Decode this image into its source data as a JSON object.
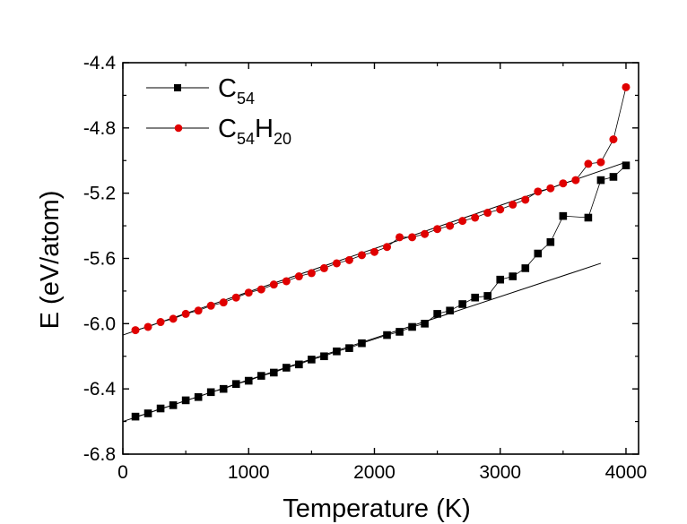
{
  "chart_data": {
    "type": "scatter",
    "title": "",
    "xlabel": "Temperature (K)",
    "ylabel": "E (eV/atom)",
    "xlim": [
      0,
      4100
    ],
    "ylim": [
      -6.8,
      -4.4
    ],
    "xticks": [
      0,
      1000,
      2000,
      3000,
      4000
    ],
    "xtick_labels": [
      "0",
      "1000",
      "2000",
      "3000",
      "4000"
    ],
    "yticks": [
      -6.8,
      -6.4,
      -6.0,
      -5.6,
      -5.2,
      -4.8,
      -4.4
    ],
    "ytick_labels": [
      "-6.8",
      "-6.4",
      "-6.0",
      "-5.6",
      "-5.2",
      "-4.8",
      "-4.4"
    ],
    "legend_position": "top-left",
    "series": [
      {
        "name": "C54",
        "legend_main": "C",
        "legend_sub": "54",
        "marker": "square",
        "color": "#000000",
        "x": [
          100,
          200,
          300,
          400,
          500,
          600,
          700,
          800,
          900,
          1000,
          1100,
          1200,
          1300,
          1400,
          1500,
          1600,
          1700,
          1800,
          1900,
          2100,
          2200,
          2300,
          2400,
          2500,
          2600,
          2700,
          2800,
          2900,
          3000,
          3100,
          3200,
          3300,
          3400,
          3500,
          3700,
          3800,
          3900,
          4000
        ],
        "y": [
          -6.57,
          -6.55,
          -6.52,
          -6.5,
          -6.47,
          -6.45,
          -6.42,
          -6.4,
          -6.37,
          -6.35,
          -6.32,
          -6.3,
          -6.27,
          -6.25,
          -6.22,
          -6.2,
          -6.17,
          -6.15,
          -6.12,
          -6.07,
          -6.05,
          -6.02,
          -6.0,
          -5.94,
          -5.92,
          -5.88,
          -5.84,
          -5.83,
          -5.73,
          -5.71,
          -5.66,
          -5.57,
          -5.5,
          -5.34,
          -5.35,
          -5.12,
          -5.1,
          -5.03
        ],
        "fit": {
          "x": [
            0,
            3800
          ],
          "y": [
            -6.6,
            -5.63
          ]
        }
      },
      {
        "name": "C54H20",
        "legend_main": "C",
        "legend_sub": "54",
        "legend_main2": "H",
        "legend_sub2": "20",
        "marker": "circle",
        "color": "#e00000",
        "x": [
          100,
          200,
          300,
          400,
          500,
          600,
          700,
          800,
          900,
          1000,
          1100,
          1200,
          1300,
          1400,
          1500,
          1600,
          1700,
          1800,
          1900,
          2000,
          2100,
          2200,
          2300,
          2400,
          2500,
          2600,
          2700,
          2800,
          2900,
          3000,
          3100,
          3200,
          3300,
          3400,
          3500,
          3600,
          3700,
          3800,
          3900,
          4000
        ],
        "y": [
          -6.04,
          -6.02,
          -5.99,
          -5.97,
          -5.94,
          -5.92,
          -5.89,
          -5.87,
          -5.84,
          -5.81,
          -5.79,
          -5.76,
          -5.74,
          -5.71,
          -5.69,
          -5.66,
          -5.63,
          -5.61,
          -5.58,
          -5.56,
          -5.53,
          -5.47,
          -5.47,
          -5.45,
          -5.42,
          -5.4,
          -5.37,
          -5.35,
          -5.32,
          -5.3,
          -5.27,
          -5.24,
          -5.19,
          -5.17,
          -5.14,
          -5.12,
          -5.02,
          -5.01,
          -4.87,
          -4.55
        ],
        "fit": {
          "x": [
            0,
            4000
          ],
          "y": [
            -6.07,
            -5.01
          ]
        }
      }
    ]
  }
}
